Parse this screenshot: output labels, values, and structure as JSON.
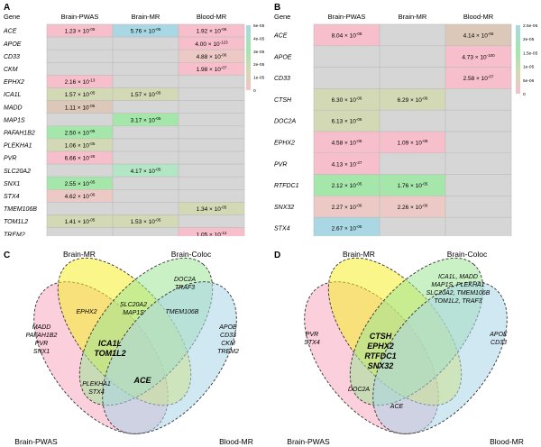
{
  "colors": {
    "empty": "#d6d6d6",
    "pink": "#f7bfcb",
    "rose": "#ecc9c4",
    "tan": "#dcc8b8",
    "olive": "#d3d9b5",
    "green": "#a5e6ab",
    "mint": "#b2e6c4",
    "blue": "#a9d8e4",
    "grid": "#bdbdbd",
    "venn_pink": "#f7a8c0",
    "venn_yellow": "#f5ef2a",
    "venn_green": "#9fe597",
    "venn_blue": "#a9d6e8"
  },
  "panel_a": {
    "letter": "A",
    "gene_header": "Gene",
    "columns": [
      "Brain-PWAS",
      "Brain-MR",
      "Blood-MR"
    ],
    "rows": [
      {
        "gene": "ACE",
        "cells": [
          {
            "v": "1.23 × 10",
            "e": "-05",
            "c": "pink"
          },
          {
            "v": "5.76 × 10",
            "e": "-05",
            "c": "blue"
          },
          {
            "v": "1.92 × 10",
            "e": "-06",
            "c": "pink"
          }
        ]
      },
      {
        "gene": "APOE",
        "cells": [
          null,
          null,
          {
            "v": "4.00 × 10",
            "e": "-123",
            "c": "pink"
          }
        ]
      },
      {
        "gene": "CD33",
        "cells": [
          null,
          null,
          {
            "v": "4.88 × 10",
            "e": "-06",
            "c": "rose"
          }
        ]
      },
      {
        "gene": "CKM",
        "cells": [
          null,
          null,
          {
            "v": "1.98 × 10",
            "e": "-07",
            "c": "pink"
          }
        ]
      },
      {
        "gene": "EPHX2",
        "cells": [
          {
            "v": "2.16 × 10",
            "e": "-13",
            "c": "pink"
          },
          null,
          null
        ]
      },
      {
        "gene": "ICA1L",
        "cells": [
          {
            "v": "1.57 × 10",
            "e": "-05",
            "c": "olive"
          },
          {
            "v": "1.57 × 10",
            "e": "-05",
            "c": "olive"
          },
          null
        ]
      },
      {
        "gene": "MADD",
        "cells": [
          {
            "v": "1.11 × 10",
            "e": "-06",
            "c": "tan"
          },
          null,
          null
        ]
      },
      {
        "gene": "MAP1S",
        "cells": [
          null,
          {
            "v": "3.17 × 10",
            "e": "-05",
            "c": "green"
          },
          null
        ]
      },
      {
        "gene": "PAFAH1B2",
        "cells": [
          {
            "v": "2.50 × 10",
            "e": "-05",
            "c": "green"
          },
          null,
          null
        ]
      },
      {
        "gene": "PLEKHA1",
        "cells": [
          {
            "v": "1.06 × 10",
            "e": "-05",
            "c": "olive"
          },
          null,
          null
        ]
      },
      {
        "gene": "PVR",
        "cells": [
          {
            "v": "6.66 × 10",
            "e": "-26",
            "c": "pink"
          },
          null,
          null
        ]
      },
      {
        "gene": "SLC20A2",
        "cells": [
          null,
          {
            "v": "4.17 × 10",
            "e": "-05",
            "c": "mint"
          },
          null
        ]
      },
      {
        "gene": "SNX1",
        "cells": [
          {
            "v": "2.55 × 10",
            "e": "-05",
            "c": "green"
          },
          null,
          null
        ]
      },
      {
        "gene": "STX4",
        "cells": [
          {
            "v": "4.62 × 10",
            "e": "-06",
            "c": "rose"
          },
          null,
          null
        ]
      },
      {
        "gene": "TMEM106B",
        "cells": [
          null,
          null,
          {
            "v": "1.34 × 10",
            "e": "-05",
            "c": "olive"
          }
        ]
      },
      {
        "gene": "TOM1L2",
        "cells": [
          {
            "v": "1.41 × 10",
            "e": "-05",
            "c": "olive"
          },
          {
            "v": "1.53 × 10",
            "e": "-05",
            "c": "olive"
          },
          null
        ]
      },
      {
        "gene": "TREM2",
        "cells": [
          null,
          null,
          {
            "v": "1.05 × 10",
            "e": "-12",
            "c": "pink"
          }
        ]
      }
    ],
    "legend_ticks": [
      "6e-05",
      "4e-05",
      "3e-05",
      "2e-05",
      "1e-05",
      "0"
    ]
  },
  "panel_b": {
    "letter": "B",
    "gene_header": "Gene",
    "columns": [
      "Brain-PWAS",
      "Brain-MR",
      "Blood-MR"
    ],
    "rows": [
      {
        "gene": "ACE",
        "cells": [
          {
            "v": "8.04 × 10",
            "e": "-08",
            "c": "pink"
          },
          null,
          {
            "v": "4.14 × 10",
            "e": "-06",
            "c": "tan"
          }
        ]
      },
      {
        "gene": "APOE",
        "cells": [
          null,
          null,
          {
            "v": "4.73 × 10",
            "e": "-100",
            "c": "pink"
          }
        ]
      },
      {
        "gene": "CD33",
        "cells": [
          null,
          null,
          {
            "v": "2.58 × 10",
            "e": "-07",
            "c": "pink"
          }
        ]
      },
      {
        "gene": "CTSH",
        "cells": [
          {
            "v": "6.30 × 10",
            "e": "-06",
            "c": "olive"
          },
          {
            "v": "6.29 × 10",
            "e": "-06",
            "c": "olive"
          },
          null
        ]
      },
      {
        "gene": "DOC2A",
        "cells": [
          {
            "v": "6.13 × 10",
            "e": "-06",
            "c": "olive"
          },
          null,
          null
        ]
      },
      {
        "gene": "EPHX2",
        "cells": [
          {
            "v": "4.58 × 10",
            "e": "-08",
            "c": "pink"
          },
          {
            "v": "1.09 × 10",
            "e": "-08",
            "c": "pink"
          },
          null
        ]
      },
      {
        "gene": "PVR",
        "cells": [
          {
            "v": "4.13 × 10",
            "e": "-27",
            "c": "pink"
          },
          null,
          null
        ]
      },
      {
        "gene": "RTFDC1",
        "cells": [
          {
            "v": "2.12 × 10",
            "e": "-05",
            "c": "green"
          },
          {
            "v": "1.76 × 10",
            "e": "-05",
            "c": "green"
          },
          null
        ]
      },
      {
        "gene": "SNX32",
        "cells": [
          {
            "v": "2.27 × 10",
            "e": "-06",
            "c": "rose"
          },
          {
            "v": "2.26 × 10",
            "e": "-06",
            "c": "rose"
          },
          null
        ]
      },
      {
        "gene": "STX4",
        "cells": [
          {
            "v": "2.67 × 10",
            "e": "-05",
            "c": "blue"
          },
          null,
          null
        ]
      }
    ],
    "legend_ticks": [
      "2.5e-05",
      "2e-05",
      "1.5e-05",
      "1e-05",
      "5e-06",
      "0"
    ]
  },
  "panel_c": {
    "letter": "C",
    "sets": {
      "brain_mr": "Brain-MR",
      "brain_coloc": "Brain-Coloc",
      "brain_pwas": "Brain-PWAS",
      "blood_mr": "Blood-MR"
    },
    "regions": [
      [
        "MADD",
        "PAFAH1B2",
        "PVR",
        "SNX1"
      ],
      [
        "EPHX2"
      ],
      [
        "DOC2A",
        "TRAF3"
      ],
      [
        "SLC20A2",
        "MAP1S"
      ],
      [
        "TMEM106B"
      ],
      [
        "APOE",
        "CD33",
        "CKM",
        "TREM2"
      ],
      [
        "ICA1L",
        "TOM1L2"
      ],
      [
        "ACE"
      ],
      [
        "PLEKHA1",
        "STX4"
      ]
    ]
  },
  "panel_d": {
    "letter": "D",
    "sets": {
      "brain_mr": "Brain-MR",
      "brain_coloc": "Brain-Coloc",
      "brain_pwas": "Brain-PWAS",
      "blood_mr": "Blood-MR"
    },
    "regions": [
      [
        "PVR",
        "STX4"
      ],
      [
        "ICA1L, MADD",
        "MAP1S, PLEKHA1",
        "SLC20A2, TMEM106B",
        "TOM1L2, TRAF3"
      ],
      [
        "APOE",
        "CD33"
      ],
      [
        "CTSH",
        "EPHX2",
        "RTFDC1",
        "SNX32"
      ],
      [
        "DOC2A"
      ],
      [
        "ACE"
      ]
    ]
  }
}
